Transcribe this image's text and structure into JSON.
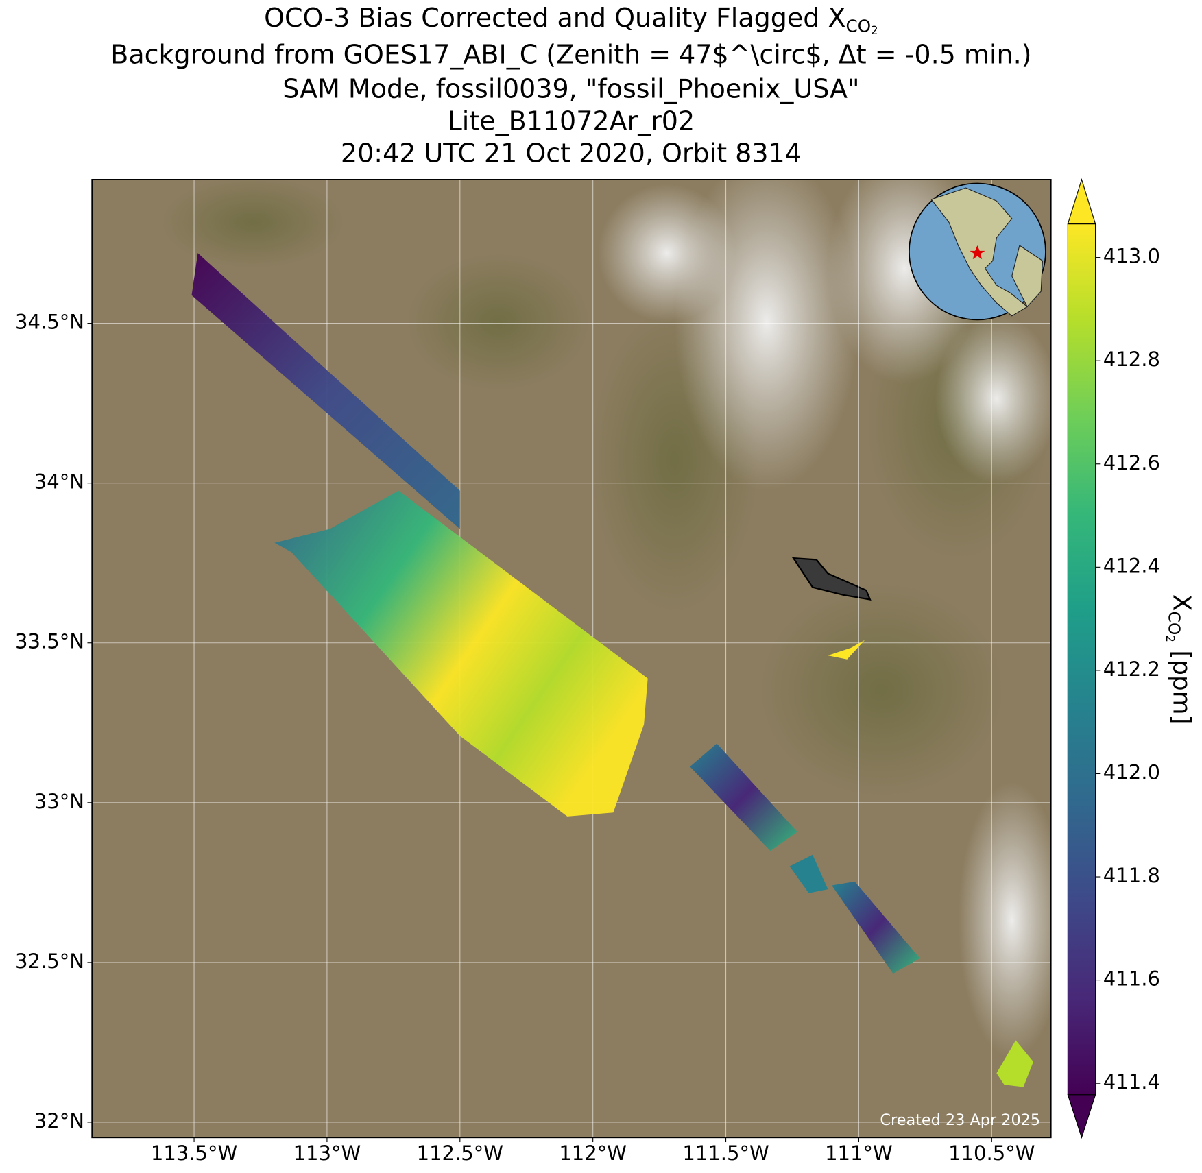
{
  "chart_data": {
    "type": "map",
    "title_lines": [
      "OCO-3 Bias Corrected and Quality Flagged ",
      "Background from GOES17_ABI_C (Zenith = 47$^\\circ$, Δt = -0.5 min.)",
      "SAM Mode, fossil0039, \"fossil_Phoenix_USA\"",
      "Lite_B11072Ar_r02",
      "20:42 UTC 21 Oct 2020, Orbit 8314"
    ],
    "xco2_symbol": {
      "base": "X",
      "sub": "CO",
      "subsub": "2"
    },
    "colorbar_unit": " [ppm]",
    "annotation": "Created 23 Apr 2025",
    "xlim": [
      -113.884,
      -110.277
    ],
    "xticks": [
      {
        "value": -113.5,
        "label": "113.5°W"
      },
      {
        "value": -113,
        "label": "113°W"
      },
      {
        "value": -112.5,
        "label": "112.5°W"
      },
      {
        "value": -112,
        "label": "112°W"
      },
      {
        "value": -111.5,
        "label": "111.5°W"
      },
      {
        "value": -111,
        "label": "111°W"
      },
      {
        "value": -110.5,
        "label": "110.5°W"
      }
    ],
    "ylim": [
      31.952,
      34.95
    ],
    "yticks": [
      {
        "value": 32,
        "label": "32°N"
      },
      {
        "value": 32.5,
        "label": "32.5°N"
      },
      {
        "value": 33,
        "label": "33°N"
      },
      {
        "value": 33.5,
        "label": "33.5°N"
      },
      {
        "value": 34,
        "label": "34°N"
      },
      {
        "value": 34.5,
        "label": "34.5°N"
      }
    ],
    "grid": true,
    "colorbar": {
      "lim": [
        411.378,
        413.065
      ],
      "ticks": [
        411.4,
        411.6,
        411.8,
        {
          "value": 412,
          "label": "412.0"
        },
        412.2,
        412.4,
        412.6,
        412.8,
        {
          "value": 413,
          "label": "413.0"
        }
      ],
      "colormap": [
        "#440154",
        "#482878",
        "#3e4989",
        "#31688e",
        "#26828e",
        "#1f9e89",
        "#35b779",
        "#6ece58",
        "#b5de2b",
        "#fde725"
      ]
    }
  }
}
